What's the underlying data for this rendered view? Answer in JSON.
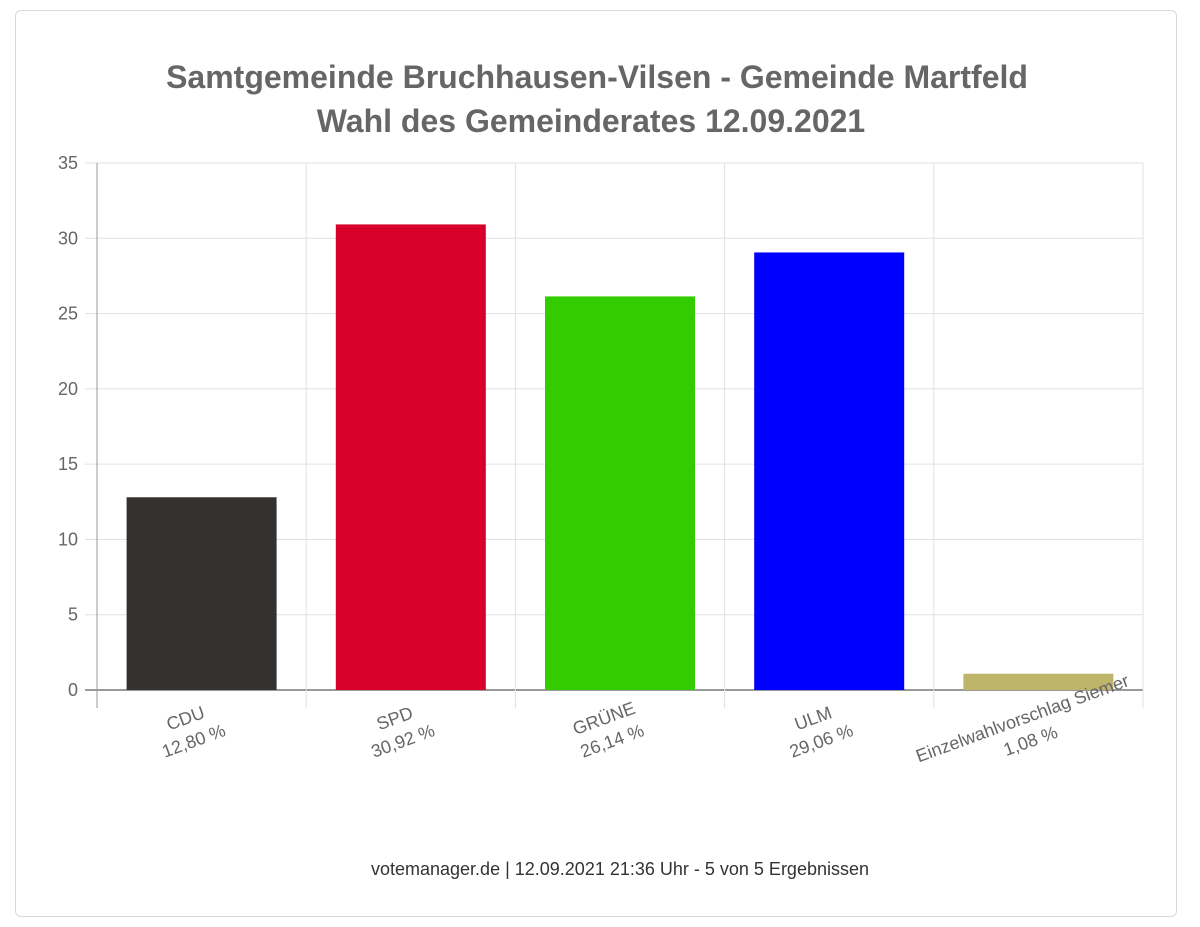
{
  "chart_data": {
    "type": "bar",
    "title": [
      "Samtgemeinde Bruchhausen-Vilsen - Gemeinde Martfeld",
      "Wahl des Gemeinderates 12.09.2021"
    ],
    "categories": [
      "CDU",
      "SPD",
      "GRÜNE",
      "ULM",
      "Einzelwahlvorschlag Siemer"
    ],
    "value_labels": [
      "12,80 %",
      "30,92 %",
      "26,14 %",
      "29,06 %",
      "1,08 %"
    ],
    "values": [
      12.8,
      30.92,
      26.14,
      29.06,
      1.08
    ],
    "colors": [
      "#333230",
      "#d6002a",
      "#33cc00",
      "#0000ff",
      "#bfb56a"
    ],
    "ylim": [
      0,
      35
    ],
    "yticks": [
      "0",
      "5",
      "10",
      "15",
      "20",
      "25",
      "30",
      "35"
    ],
    "xlabel": "",
    "ylabel": "",
    "grid": true,
    "legend": "none"
  },
  "footer": "votemanager.de | 12.09.2021 21:36 Uhr - 5 von 5 Ergebnissen"
}
